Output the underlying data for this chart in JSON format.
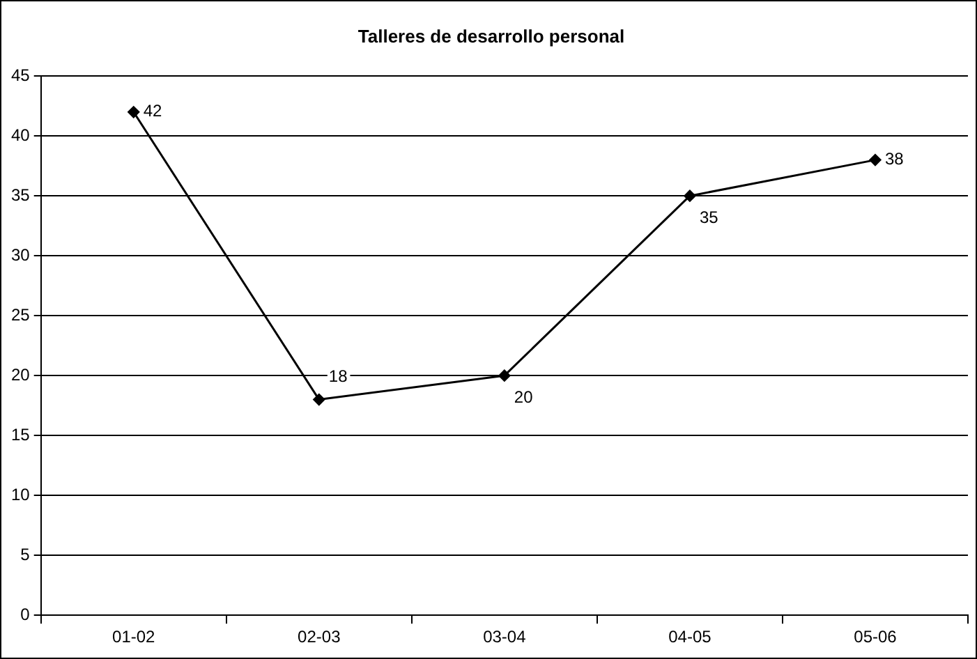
{
  "chart_data": {
    "type": "line",
    "title": "Talleres de desarrollo personal",
    "categories": [
      "01-02",
      "02-03",
      "03-04",
      "04-05",
      "05-06"
    ],
    "values": [
      42,
      18,
      20,
      35,
      38
    ],
    "color": "#000000",
    "ylim": [
      0,
      45
    ],
    "yticks": [
      0,
      5,
      10,
      15,
      20,
      25,
      30,
      35,
      40,
      45
    ],
    "grid": "y",
    "legend": false,
    "marker": "diamond",
    "line_style": "solid",
    "data_labels": true
  }
}
